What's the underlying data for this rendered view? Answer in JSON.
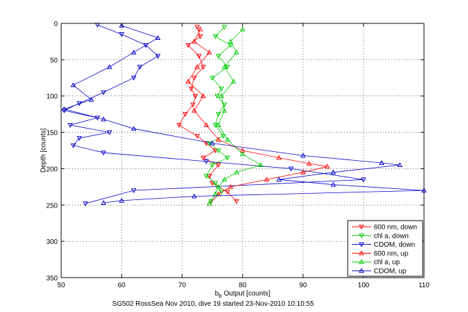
{
  "chart_data": {
    "type": "scatter",
    "title": "",
    "xlabel": "Output [counts]",
    "xlabel_b": "b",
    "xlabel_sub": "b",
    "ylabel": "Depth [counts]",
    "caption": "SG502 RossSea Nov 2010, dive 19 started 23-Nov-2010 10:10:55",
    "xlim": [
      50,
      110
    ],
    "ylim": [
      350,
      0
    ],
    "xticks": [
      50,
      60,
      70,
      80,
      90,
      100,
      110
    ],
    "yticks": [
      0,
      50,
      100,
      150,
      200,
      250,
      300,
      350
    ],
    "grid": true,
    "legend_position": "bottom-right",
    "series": [
      {
        "name": "600 nm, down",
        "color": "#ff0000",
        "marker": "triangle-down",
        "x": [
          72.5,
          73,
          71,
          72.8,
          73.5,
          72,
          71.5,
          72.2,
          71.8,
          70.5,
          69.5,
          72.5,
          74,
          75.5,
          73.5,
          76,
          74.5,
          75,
          77.5,
          79
        ],
        "y": [
          5,
          18,
          30,
          45,
          60,
          75,
          90,
          100,
          112,
          125,
          140,
          155,
          165,
          175,
          185,
          195,
          210,
          220,
          232,
          245
        ]
      },
      {
        "name": "chl a, down",
        "color": "#00cc00",
        "marker": "triangle-down",
        "x": [
          77,
          75.5,
          78,
          76,
          77.5,
          75,
          76.5,
          75.8,
          77,
          76,
          75.5,
          76.8,
          74.5,
          76,
          77.5,
          75,
          74,
          75.5,
          76.5,
          74.8
        ],
        "y": [
          5,
          18,
          30,
          45,
          60,
          75,
          90,
          100,
          112,
          125,
          140,
          155,
          165,
          175,
          185,
          195,
          210,
          220,
          232,
          245
        ]
      },
      {
        "name": "CDOM, down",
        "color": "#0000cc",
        "marker": "triangle-down",
        "x": [
          56,
          60,
          64,
          66,
          63,
          62,
          57,
          53,
          50.5,
          56,
          51.5,
          58,
          53,
          52,
          57,
          74,
          88,
          100,
          62,
          54
        ],
        "y": [
          2,
          15,
          30,
          45,
          60,
          75,
          95,
          110,
          120,
          130,
          140,
          150,
          158,
          168,
          178,
          190,
          200,
          215,
          230,
          248
        ]
      },
      {
        "name": "600 nm, up",
        "color": "#ff0000",
        "marker": "triangle-up",
        "x": [
          73,
          72,
          74.5,
          72.5,
          71,
          73.5,
          72,
          74,
          76,
          80,
          86,
          91,
          94,
          90,
          84,
          78,
          76,
          74.5
        ],
        "y": [
          8,
          25,
          40,
          60,
          80,
          100,
          120,
          140,
          160,
          175,
          185,
          193,
          197,
          205,
          215,
          225,
          235,
          248
        ]
      },
      {
        "name": "chl a, up",
        "color": "#00cc00",
        "marker": "triangle-up",
        "x": [
          80,
          78,
          79,
          77,
          78.5,
          76.5,
          77,
          76,
          77.5,
          80,
          83,
          79,
          77,
          76,
          75.5,
          74.5
        ],
        "y": [
          8,
          25,
          40,
          60,
          80,
          100,
          120,
          140,
          160,
          180,
          195,
          205,
          215,
          225,
          235,
          248
        ]
      },
      {
        "name": "CDOM, up",
        "color": "#0000cc",
        "marker": "triangle-up",
        "x": [
          60,
          66,
          62,
          58,
          52,
          55,
          50.5,
          57,
          62,
          75,
          90,
          103,
          106,
          95,
          86,
          95,
          110,
          72,
          60,
          57
        ],
        "y": [
          3,
          20,
          40,
          60,
          85,
          105,
          118,
          132,
          145,
          165,
          182,
          192,
          195,
          205,
          215,
          222,
          230,
          238,
          244,
          247
        ]
      }
    ]
  }
}
